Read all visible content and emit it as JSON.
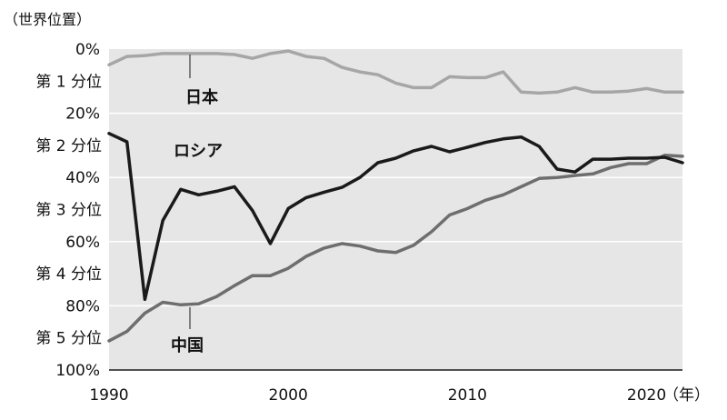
{
  "chart_data": {
    "type": "line",
    "title": "",
    "ylabel": "（世界位置）",
    "x_unit": "（年）",
    "xlim": [
      1990,
      2022
    ],
    "ylim": [
      0,
      100
    ],
    "y_inverted": true,
    "grid": true,
    "legend": "inline labels",
    "x_ticks": [
      {
        "value": 1990,
        "label": "1990"
      },
      {
        "value": 2000,
        "label": "2000"
      },
      {
        "value": 2010,
        "label": "2010"
      },
      {
        "value": 2020,
        "label": "2020"
      }
    ],
    "y_ticks": [
      {
        "value": 0,
        "label": "0%"
      },
      {
        "value": 20,
        "label": "20%"
      },
      {
        "value": 40,
        "label": "40%"
      },
      {
        "value": 60,
        "label": "60%"
      },
      {
        "value": 80,
        "label": "80%"
      },
      {
        "value": 100,
        "label": "100%"
      }
    ],
    "bands": [
      {
        "value": 10,
        "label": "第 1 分位"
      },
      {
        "value": 30,
        "label": "第 2 分位"
      },
      {
        "value": 50,
        "label": "第 3 分位"
      },
      {
        "value": 70,
        "label": "第 4 分位"
      },
      {
        "value": 90,
        "label": "第 5 分位"
      }
    ],
    "x": [
      1990,
      1991,
      1992,
      1993,
      1994,
      1995,
      1996,
      1997,
      1998,
      1999,
      2000,
      2001,
      2002,
      2003,
      2004,
      2005,
      2006,
      2007,
      2008,
      2009,
      2010,
      2011,
      2012,
      2013,
      2014,
      2015,
      2016,
      2017,
      2018,
      2019,
      2020,
      2021,
      2022
    ],
    "series": [
      {
        "name": "日本",
        "color": "#a6a6a6",
        "values": [
          4.9,
          2.3,
          2.0,
          1.4,
          1.4,
          1.4,
          1.4,
          1.7,
          2.9,
          1.4,
          0.6,
          2.3,
          2.9,
          5.7,
          7.1,
          8.0,
          10.6,
          12.0,
          12.0,
          8.6,
          8.9,
          8.9,
          7.1,
          13.4,
          13.7,
          13.4,
          12.0,
          13.4,
          13.4,
          13.1,
          12.3,
          13.4,
          13.4
        ]
      },
      {
        "name": "ロシア",
        "color": "#1a1a1a",
        "values": [
          26.3,
          28.9,
          78.0,
          53.4,
          43.7,
          45.4,
          44.3,
          42.9,
          50.3,
          60.6,
          49.7,
          46.3,
          44.6,
          43.1,
          40.0,
          35.4,
          34.0,
          31.7,
          30.3,
          32.0,
          30.6,
          29.1,
          28.0,
          27.4,
          30.3,
          37.4,
          38.3,
          34.3,
          34.3,
          34.0,
          34.0,
          33.7,
          35.4
        ]
      },
      {
        "name": "中国",
        "color": "#6e6e6e",
        "values": [
          90.9,
          88.0,
          82.3,
          78.9,
          79.7,
          79.4,
          77.1,
          73.7,
          70.6,
          70.6,
          68.3,
          64.6,
          62.0,
          60.6,
          61.4,
          62.9,
          63.4,
          61.1,
          56.9,
          51.7,
          49.7,
          47.1,
          45.4,
          42.9,
          40.3,
          40.0,
          39.4,
          38.9,
          36.9,
          35.7,
          35.7,
          33.1,
          33.4
        ]
      }
    ],
    "annotations": [
      {
        "text": "日本",
        "series": "日本"
      },
      {
        "text": "ロシア",
        "series": "ロシア"
      },
      {
        "text": "中国",
        "series": "中国"
      }
    ]
  }
}
